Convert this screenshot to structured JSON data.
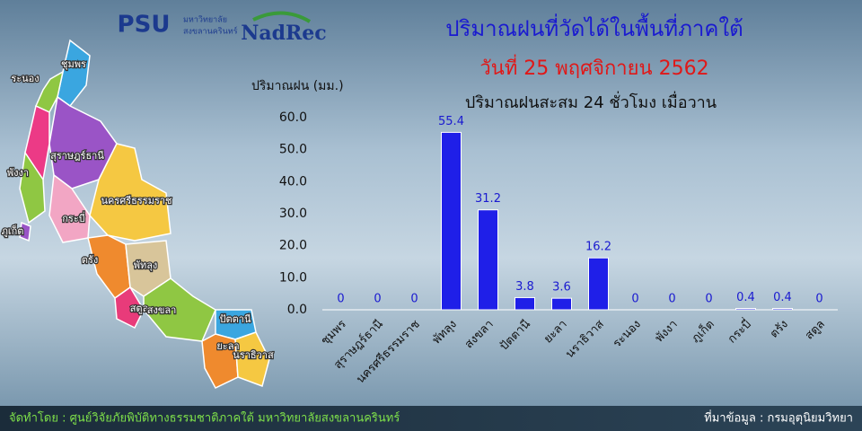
{
  "header": {
    "logo_psu": "PSU",
    "logo_psu_line1": "มหาวิทยาลัย",
    "logo_psu_line2": "สงขลานครินทร์",
    "logo_nadrec": "NadRec"
  },
  "map_labels": [
    "ชุมพร",
    "ระนอง",
    "สุราษฎร์ธานี",
    "พังงา",
    "นครศรีธรรมราช",
    "กระบี่",
    "ภูเก็ต",
    "ตรัง",
    "พัทลุง",
    "สตูล",
    "สงขลา",
    "ปัตตานี",
    "ยะลา",
    "นราธิวาส"
  ],
  "chart_data": {
    "type": "bar",
    "title": "ปริมาณฝนที่วัดได้ในพื้นที่ภาคใต้",
    "subtitle": "วันที่ 25 พฤศจิกายน 2562",
    "caption": "ปริมาณฝนสะสม 24 ชั่วโมง เมื่อวาน",
    "y_label": "ปริมาณฝน (มม.)",
    "categories": [
      "ชุมพร",
      "สุราษฎร์ธานี",
      "นครศรีธรรมราช",
      "พัทลุง",
      "สงขลา",
      "ปัตตานี",
      "ยะลา",
      "นราธิวาส",
      "ระนอง",
      "พังงา",
      "ภูเก็ต",
      "กระบี่",
      "ตรัง",
      "สตูล"
    ],
    "values": [
      0,
      0,
      0,
      55.4,
      31.2,
      3.8,
      3.6,
      16.2,
      0,
      0,
      0,
      0.4,
      0.4,
      0
    ],
    "color": "#1f1fe8",
    "ylim": [
      0,
      60
    ],
    "yticks": [
      {
        "value": 0,
        "label": "0.0"
      },
      {
        "value": 10,
        "label": "10.0"
      },
      {
        "value": 20,
        "label": "20.0"
      },
      {
        "value": 30,
        "label": "30.0"
      },
      {
        "value": 40,
        "label": "40.0"
      },
      {
        "value": 50,
        "label": "50.0"
      },
      {
        "value": 60,
        "label": "60.0"
      }
    ]
  },
  "footer": {
    "credit": "จัดทำโดย : ศูนย์วิจัยภัยพิบัติทางธรรมชาติภาคใต้ มหาวิทยาลัยสงขลานครินทร์",
    "source": "ที่มาข้อมูล : กรมอุตุนิยมวิทยา"
  }
}
